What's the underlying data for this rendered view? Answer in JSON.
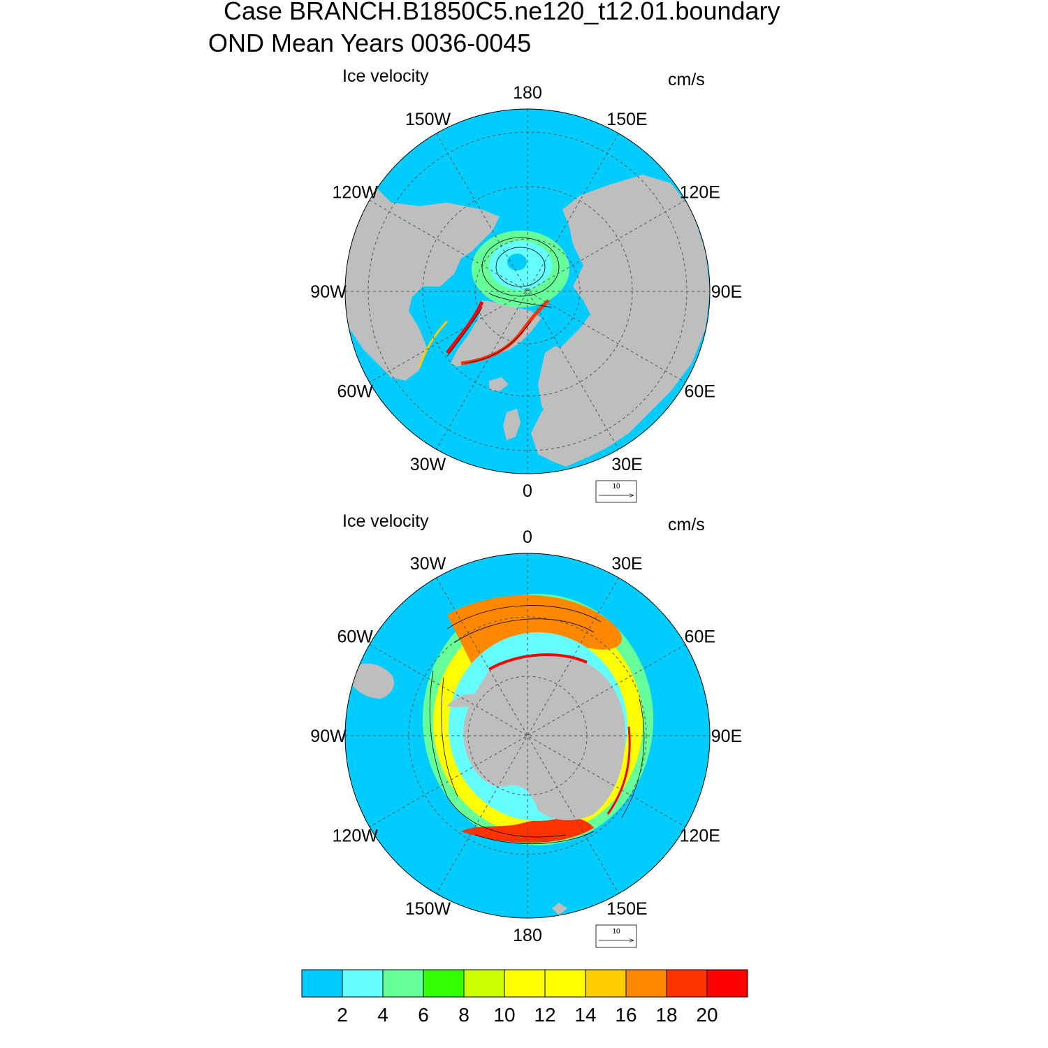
{
  "title": {
    "line1": "Case BRANCH.B1850C5.ne120_t12.01.boundary",
    "line2": "OND Mean   Years 0036-0045"
  },
  "panels": [
    {
      "id": "north",
      "label": "Ice velocity",
      "units": "cm/s",
      "hemisphere": "Northern",
      "lon_labels": [
        "180",
        "150E",
        "120E",
        "90E",
        "60E",
        "30E",
        "0",
        "30W",
        "60W",
        "90W",
        "120W",
        "150W"
      ],
      "ref_vector_label": "10"
    },
    {
      "id": "south",
      "label": "Ice velocity",
      "units": "cm/s",
      "hemisphere": "Southern",
      "lon_labels": [
        "0",
        "30E",
        "60E",
        "90E",
        "120E",
        "150E",
        "180",
        "150W",
        "120W",
        "90W",
        "60W",
        "30W"
      ],
      "ref_vector_label": "10"
    }
  ],
  "colorbar": {
    "colors": [
      "#00ccff",
      "#66ffff",
      "#66ff99",
      "#33ff00",
      "#ccff00",
      "#ffff00",
      "#ffff00",
      "#ffcc00",
      "#ff8800",
      "#ff3300",
      "#ff0000"
    ],
    "labels": [
      "2",
      "4",
      "6",
      "8",
      "10",
      "12",
      "14",
      "16",
      "18",
      "20"
    ]
  },
  "map_colors": {
    "ocean": "#00ccff",
    "land": "#bebebe"
  }
}
